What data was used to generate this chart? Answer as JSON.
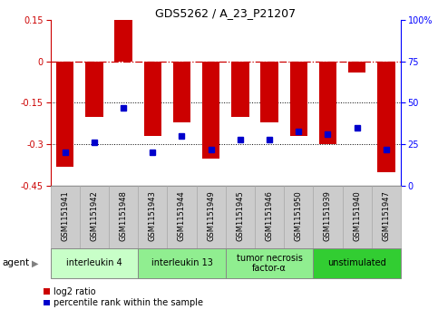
{
  "title": "GDS5262 / A_23_P21207",
  "samples": [
    "GSM1151941",
    "GSM1151942",
    "GSM1151948",
    "GSM1151943",
    "GSM1151944",
    "GSM1151949",
    "GSM1151945",
    "GSM1151946",
    "GSM1151950",
    "GSM1151939",
    "GSM1151940",
    "GSM1151947"
  ],
  "log2_ratio": [
    -0.38,
    -0.2,
    0.15,
    -0.27,
    -0.22,
    -0.35,
    -0.2,
    -0.22,
    -0.27,
    -0.3,
    -0.04,
    -0.4
  ],
  "percentile": [
    20,
    26,
    47,
    20,
    30,
    22,
    28,
    28,
    33,
    31,
    35,
    22
  ],
  "agents": [
    {
      "label": "interleukin 4",
      "start": 0,
      "end": 3,
      "color": "#c8ffc8"
    },
    {
      "label": "interleukin 13",
      "start": 3,
      "end": 6,
      "color": "#90ee90"
    },
    {
      "label": "tumor necrosis\nfactor-α",
      "start": 6,
      "end": 9,
      "color": "#90ee90"
    },
    {
      "label": "unstimulated",
      "start": 9,
      "end": 12,
      "color": "#32cd32"
    }
  ],
  "ylim_left": [
    -0.45,
    0.15
  ],
  "ylim_right": [
    0,
    100
  ],
  "yticks_left": [
    0.15,
    0.0,
    -0.15,
    -0.3,
    -0.45
  ],
  "yticks_right": [
    100,
    75,
    50,
    25,
    0
  ],
  "bar_color": "#cc0000",
  "dot_color": "#0000cc",
  "hline_zero_color": "#cc0000",
  "hline_dotted_color": "black",
  "background_color": "white",
  "bar_width": 0.6,
  "xlim": [
    -0.5,
    11.5
  ],
  "agent_label_fontsize": 7,
  "sample_fontsize": 6,
  "tick_fontsize": 7,
  "title_fontsize": 9
}
